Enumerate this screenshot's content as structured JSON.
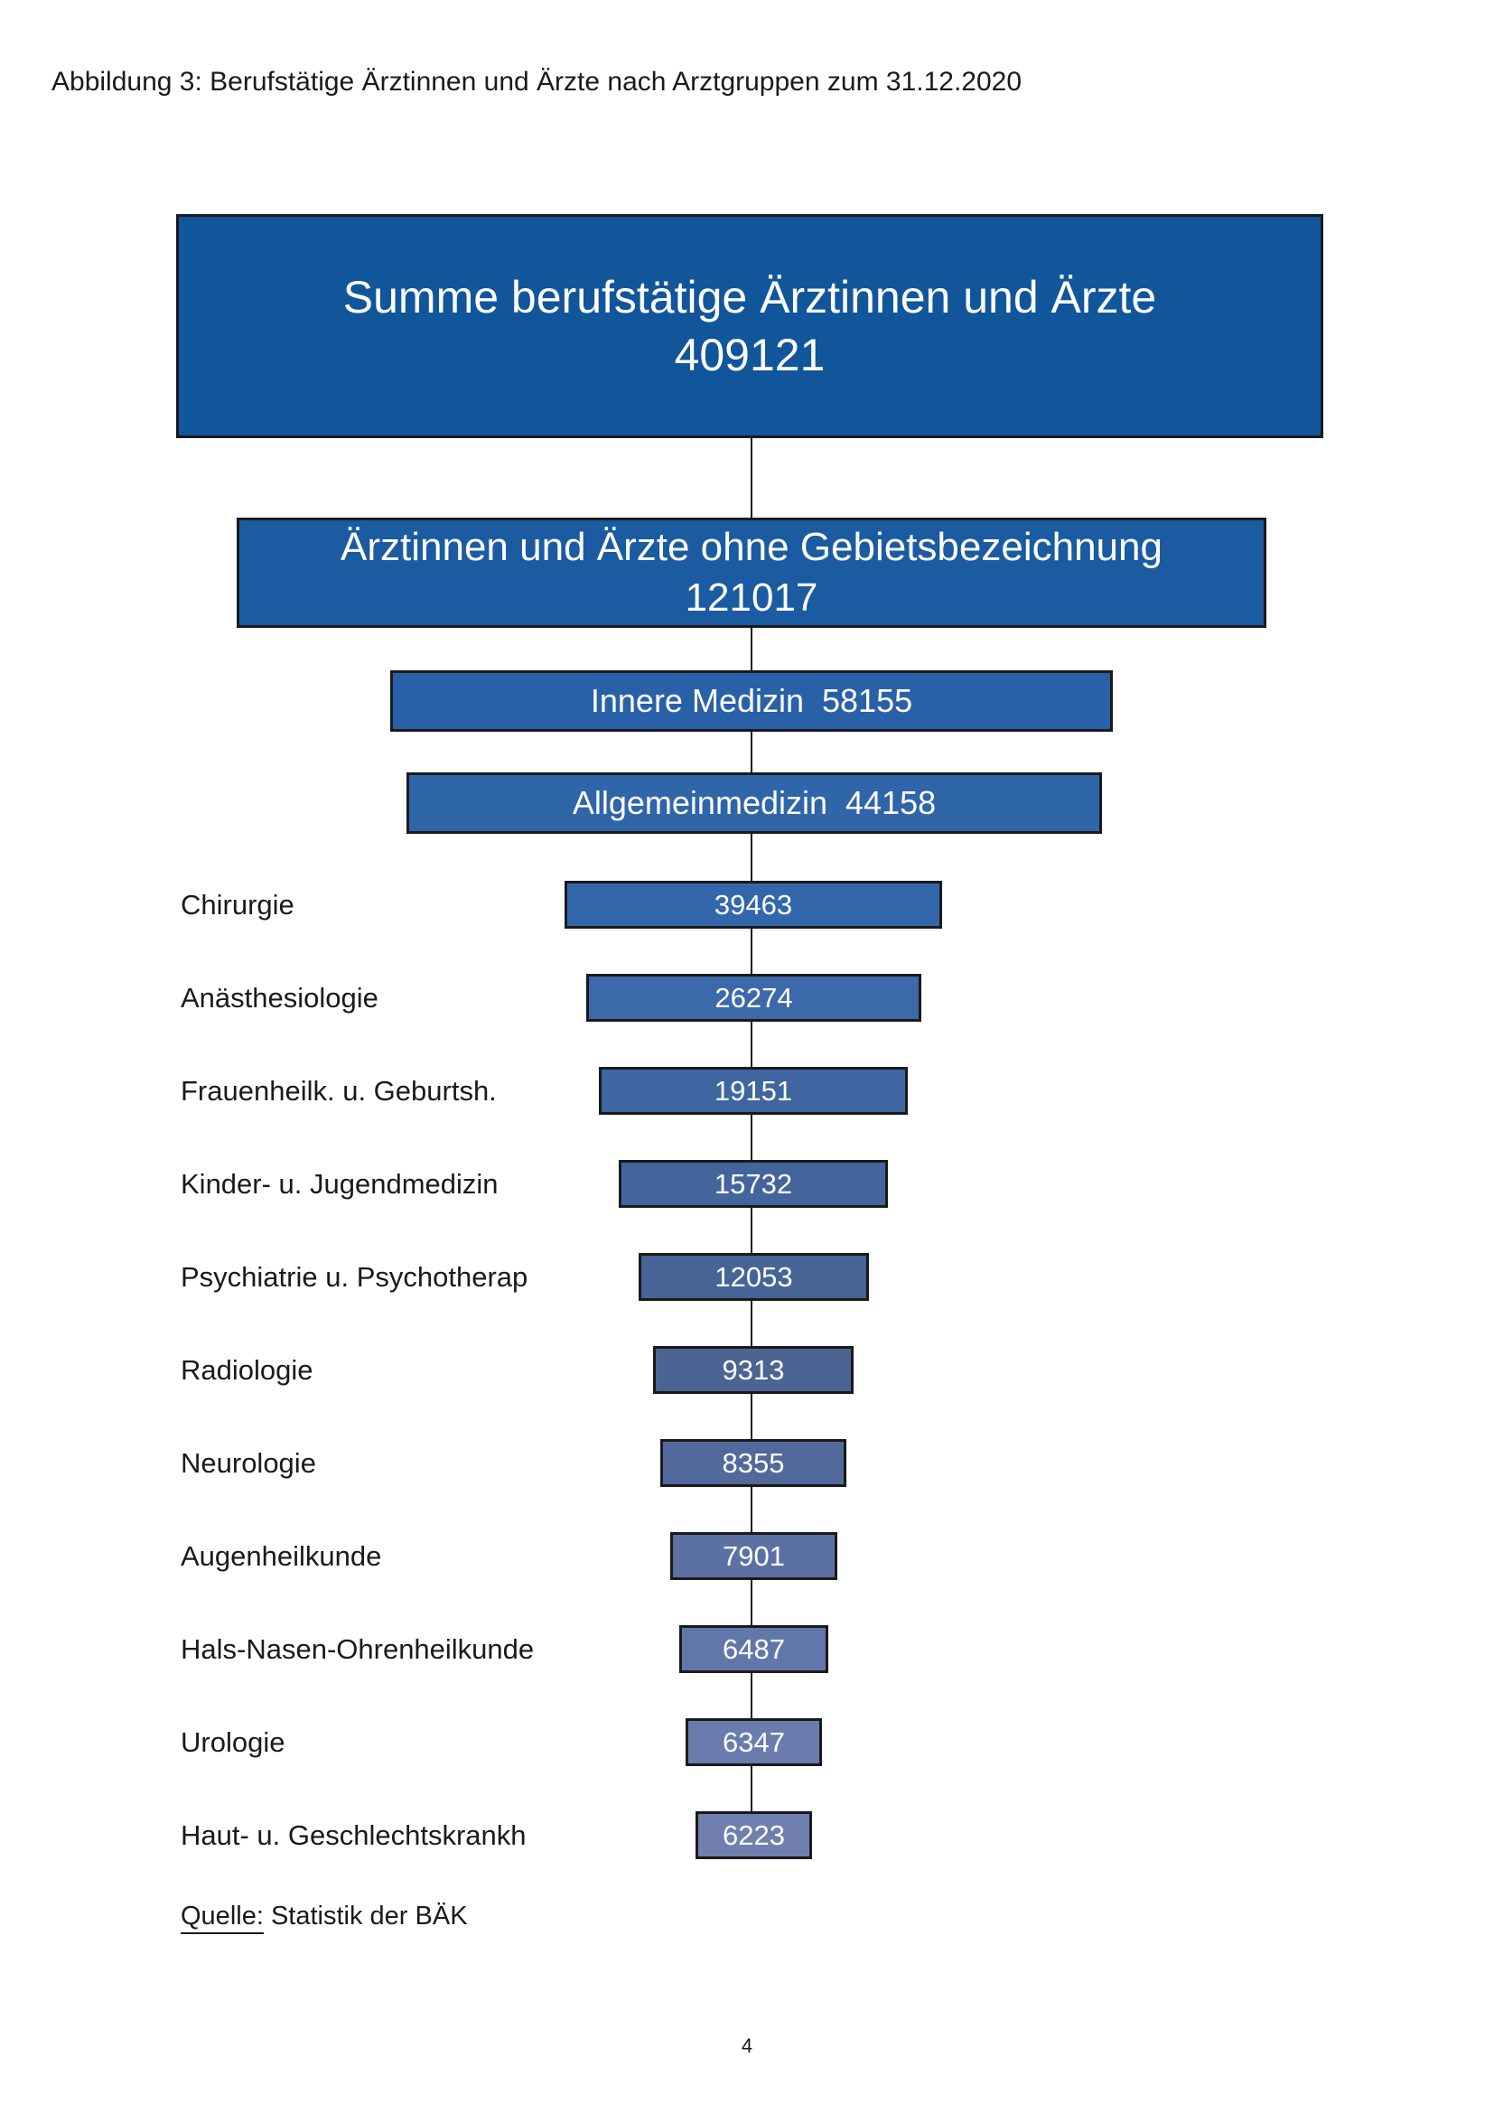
{
  "page": {
    "heading": "Abbildung 3: Berufstätige Ärztinnen und Ärzte nach Arztgruppen zum 31.12.2020",
    "source": {
      "label": "Quelle:",
      "text": "Statistik der BÄK"
    },
    "page_number": "4"
  },
  "chart_data": {
    "type": "funnel",
    "title": "Berufstätige Ärztinnen und Ärzte nach Arztgruppen zum 31.12.2020",
    "date": "31.12.2020",
    "legend_position": "none",
    "value_text_color": "#FFFFFF",
    "border_color": "#1A1A1A",
    "nodes": [
      {
        "label": "Summe berufstätige Ärztinnen und Ärzte",
        "value": 409121,
        "display": "stacked",
        "color": "#11569B"
      },
      {
        "label": "Ärztinnen und Ärzte ohne Gebietsbezeichnung",
        "value": 121017,
        "display": "stacked",
        "color": "#1A5BA1"
      },
      {
        "label": "Innere Medizin",
        "value": 58155,
        "display": "inline",
        "color": "#2961A8"
      },
      {
        "label": "Allgemeinmedizin",
        "value": 44158,
        "display": "inline",
        "color": "#2F65A9"
      },
      {
        "label": "Chirurgie",
        "value": 39463,
        "display": "side",
        "color": "#3367AB"
      },
      {
        "label": "Anästhesiologie",
        "value": 26274,
        "display": "side",
        "color": "#3B69A9"
      },
      {
        "label": "Frauenheilk. u. Geburtsh.",
        "value": 19151,
        "display": "side",
        "color": "#3F66A0"
      },
      {
        "label": "Kinder- u. Jugendmedizin",
        "value": 15732,
        "display": "side",
        "color": "#43659C"
      },
      {
        "label": "Psychiatrie u. Psychotherap",
        "value": 12053,
        "display": "side",
        "color": "#476497"
      },
      {
        "label": "Radiologie",
        "value": 9313,
        "display": "side",
        "color": "#4C6494"
      },
      {
        "label": "Neurologie",
        "value": 8355,
        "display": "side",
        "color": "#526A9B"
      },
      {
        "label": "Augenheilkunde",
        "value": 7901,
        "display": "side",
        "color": "#5B71A4"
      },
      {
        "label": "Hals-Nasen-Ohrenheilkunde",
        "value": 6487,
        "display": "side",
        "color": "#6277A9"
      },
      {
        "label": "Urologie",
        "value": 6347,
        "display": "side",
        "color": "#6A7CAD"
      },
      {
        "label": "Haut- u. Geschlechtskrankh",
        "value": 6223,
        "display": "side",
        "color": "#707FAF"
      }
    ]
  }
}
